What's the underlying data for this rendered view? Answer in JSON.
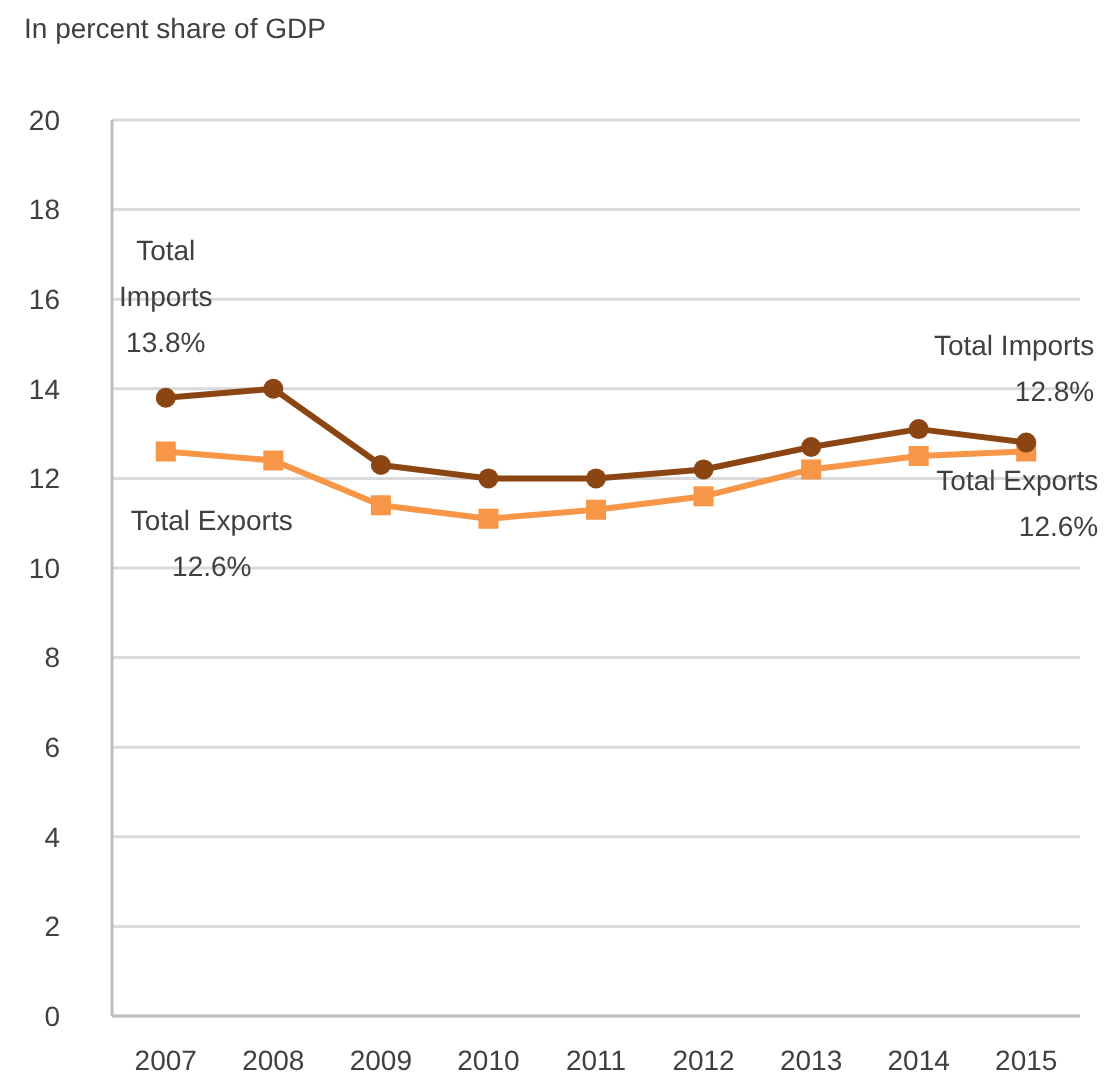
{
  "chart_data": {
    "type": "line",
    "title": "In percent share of GDP",
    "categories": [
      "2007",
      "2008",
      "2009",
      "2010",
      "2011",
      "2012",
      "2013",
      "2014",
      "2015"
    ],
    "series": [
      {
        "color": "#8b4513",
        "marker": "circle",
        "values": [
          13.8,
          14.0,
          12.3,
          12.0,
          12.0,
          12.2,
          12.7,
          13.1,
          12.8
        ]
      },
      {
        "color": "#f79646",
        "marker": "square",
        "values": [
          12.6,
          12.4,
          11.4,
          11.1,
          11.3,
          11.6,
          12.2,
          12.5,
          12.6
        ]
      }
    ],
    "ylim": [
      0,
      20
    ],
    "yticks": [
      0,
      2,
      4,
      6,
      8,
      10,
      12,
      14,
      16,
      18,
      20
    ],
    "grid": "y",
    "annotations": [
      {
        "text": "Total\nImports\n13.8%",
        "x": "2007",
        "y": 13.8
      },
      {
        "text": "Total Exports\n12.6%",
        "x": "2007",
        "y": 12.6
      },
      {
        "text": "Total Imports\n12.8%",
        "x": "2015",
        "y": 12.8
      },
      {
        "text": "Total Exports\n12.6%",
        "x": "2015",
        "y": 12.6
      }
    ]
  }
}
